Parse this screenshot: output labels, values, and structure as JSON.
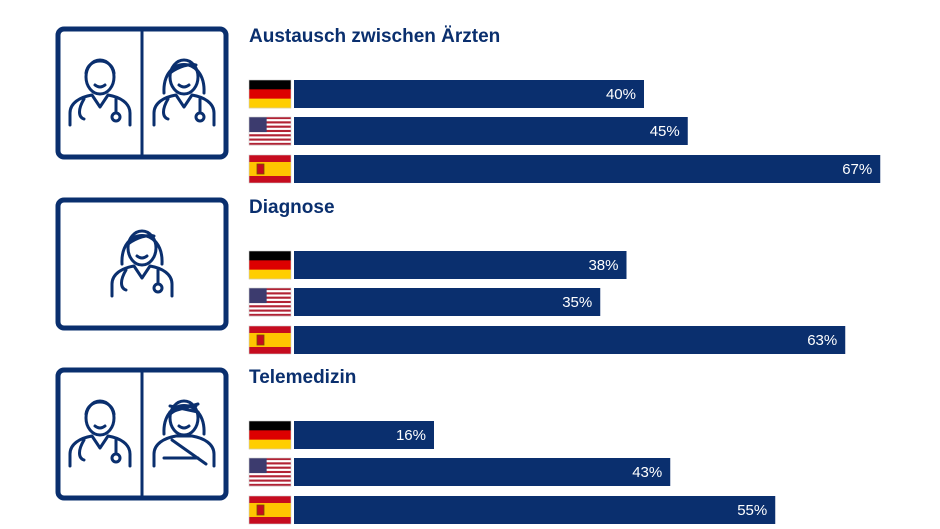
{
  "colors": {
    "navy": "#0a2f6e",
    "flag_de": [
      "#000000",
      "#dd0000",
      "#ffce00"
    ],
    "flag_us": [
      "#b22234",
      "#ffffff",
      "#3c3b6e"
    ],
    "flag_es": [
      "#c60b1e",
      "#ffc400"
    ]
  },
  "chart_data": {
    "type": "bar",
    "orientation": "horizontal",
    "value_unit": "%",
    "xlim": [
      0,
      100
    ],
    "grid": false,
    "series_names": [
      "Deutschland",
      "USA",
      "Spanien"
    ],
    "series_flags": [
      "flag-germany-icon",
      "flag-usa-icon",
      "flag-spain-icon"
    ],
    "groups": [
      {
        "title": "Austausch zwischen Ärzten",
        "icon": "doctors-pair-icon",
        "values": [
          40,
          45,
          67
        ],
        "labels": [
          "40%",
          "45%",
          "67%"
        ]
      },
      {
        "title": "Diagnose",
        "icon": "doctor-female-icon",
        "values": [
          38,
          35,
          63
        ],
        "labels": [
          "38%",
          "35%",
          "63%"
        ]
      },
      {
        "title": "Telemedizin",
        "icon": "doctor-and-patient-icon",
        "values": [
          16,
          43,
          55
        ],
        "labels": [
          "16%",
          "43%",
          "55%"
        ]
      }
    ]
  }
}
